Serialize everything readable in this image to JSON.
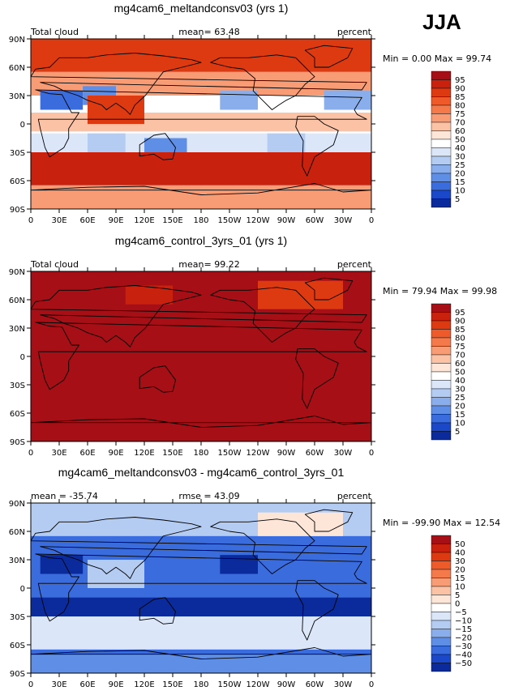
{
  "season": "JJA",
  "panels": [
    {
      "title": "mg4cam6_meltandconsv03 (yrs 1)",
      "left_label": "Total cloud",
      "center_label": "mean=  63.48",
      "right_label": "percent",
      "minmax_label": "Min =   0.00 Max =  99.74",
      "scheme": "abs",
      "field": "model"
    },
    {
      "title": "mg4cam6_control_3yrs_01 (yrs 1)",
      "left_label": "Total cloud",
      "center_label": "mean=  99.22",
      "right_label": "percent",
      "minmax_label": "Min =  79.94 Max =  99.98",
      "scheme": "abs",
      "field": "control"
    },
    {
      "title": "mg4cam6_meltandconsv03 - mg4cam6_control_3yrs_01",
      "left_label": "mean = -35.74",
      "center_label": "rmse =  43.09",
      "right_label": "percent",
      "minmax_label": "Min = -99.90 Max =  12.54",
      "scheme": "diff",
      "field": "diff"
    }
  ],
  "chart_data": {
    "type": "heatmap",
    "subtype": "global lat-lon contour map",
    "variable": "Total cloud",
    "units": "percent",
    "season": "JJA",
    "x_ticks": [
      "0",
      "30E",
      "60E",
      "90E",
      "120E",
      "150E",
      "180",
      "150W",
      "120W",
      "90W",
      "60W",
      "30W",
      "0"
    ],
    "y_ticks": [
      "90N",
      "60N",
      "30N",
      "0",
      "30S",
      "60S",
      "90S"
    ],
    "xlim": [
      0,
      360
    ],
    "ylim": [
      -90,
      90
    ],
    "colorbars": {
      "abs": {
        "levels": [
          "95",
          "90",
          "85",
          "80",
          "75",
          "70",
          "60",
          "50",
          "40",
          "30",
          "25",
          "20",
          "15",
          "10",
          "5"
        ],
        "colors": [
          "#a50f15",
          "#c8210e",
          "#dd3a12",
          "#ee5a2a",
          "#f47a4c",
          "#f89c76",
          "#fbc2a6",
          "#fde6d8",
          "#ffffff",
          "#dbe6f8",
          "#b4cbf2",
          "#8aaeec",
          "#5f8ee6",
          "#3a6cde",
          "#1a48c8",
          "#0b2b9c"
        ]
      },
      "diff": {
        "levels": [
          "50",
          "40",
          "30",
          "20",
          "15",
          "10",
          "5",
          "0",
          "−5",
          "−10",
          "−15",
          "−20",
          "−30",
          "−40",
          "−50"
        ],
        "colors": [
          "#a50f15",
          "#c8210e",
          "#dd3a12",
          "#ee5a2a",
          "#f47a4c",
          "#f89c76",
          "#fbc2a6",
          "#fde6d8",
          "#ffffff",
          "#dbe6f8",
          "#b4cbf2",
          "#8aaeec",
          "#5f8ee6",
          "#3a6cde",
          "#1a48c8",
          "#0b2b9c"
        ]
      }
    },
    "panels": [
      {
        "name": "mg4cam6_meltandconsv03 (yrs 1)",
        "mean": 63.48,
        "min": 0.0,
        "max": 99.74
      },
      {
        "name": "mg4cam6_control_3yrs_01 (yrs 1)",
        "mean": 99.22,
        "min": 79.94,
        "max": 99.98
      },
      {
        "name": "mg4cam6_meltandconsv03 - mg4cam6_control_3yrs_01",
        "mean": -35.74,
        "rmse": 43.09,
        "min": -99.9,
        "max": 12.54
      }
    ],
    "regions": {
      "model": [
        {
          "lon": [
            0,
            360
          ],
          "lat": [
            55,
            90
          ],
          "value": 85
        },
        {
          "lon": [
            0,
            360
          ],
          "lat": [
            30,
            55
          ],
          "value": 72
        },
        {
          "lon": [
            0,
            360
          ],
          "lat": [
            -8,
            12
          ],
          "value": 65
        },
        {
          "lon": [
            0,
            360
          ],
          "lat": [
            -30,
            -10
          ],
          "value": 35
        },
        {
          "lon": [
            0,
            360
          ],
          "lat": [
            -65,
            -30
          ],
          "value": 92
        },
        {
          "lon": [
            0,
            360
          ],
          "lat": [
            -90,
            -65
          ],
          "value": 72
        },
        {
          "lon": [
            10,
            55
          ],
          "lat": [
            15,
            35
          ],
          "value": 12
        },
        {
          "lon": [
            55,
            90
          ],
          "lat": [
            20,
            40
          ],
          "value": 18
        },
        {
          "lon": [
            200,
            240
          ],
          "lat": [
            15,
            35
          ],
          "value": 20
        },
        {
          "lon": [
            310,
            360
          ],
          "lat": [
            15,
            35
          ],
          "value": 22
        },
        {
          "lon": [
            60,
            120
          ],
          "lat": [
            0,
            30
          ],
          "value": 88
        },
        {
          "lon": [
            60,
            100
          ],
          "lat": [
            -30,
            -10
          ],
          "value": 25
        },
        {
          "lon": [
            250,
            290
          ],
          "lat": [
            -30,
            -10
          ],
          "value": 28
        },
        {
          "lon": [
            120,
            165
          ],
          "lat": [
            -30,
            -15
          ],
          "value": 15
        }
      ],
      "control": [
        {
          "lon": [
            0,
            360
          ],
          "lat": [
            -90,
            90
          ],
          "value": 97
        },
        {
          "lon": [
            240,
            330
          ],
          "lat": [
            50,
            80
          ],
          "value": 88
        },
        {
          "lon": [
            100,
            150
          ],
          "lat": [
            55,
            75
          ],
          "value": 91
        }
      ],
      "diff": [
        {
          "lon": [
            0,
            360
          ],
          "lat": [
            -90,
            90
          ],
          "value": -35
        },
        {
          "lon": [
            0,
            360
          ],
          "lat": [
            -65,
            -30
          ],
          "value": -10
        },
        {
          "lon": [
            0,
            360
          ],
          "lat": [
            55,
            90
          ],
          "value": -15
        },
        {
          "lon": [
            0,
            360
          ],
          "lat": [
            -30,
            -10
          ],
          "value": -55
        },
        {
          "lon": [
            10,
            55
          ],
          "lat": [
            15,
            35
          ],
          "value": -55
        },
        {
          "lon": [
            200,
            240
          ],
          "lat": [
            15,
            35
          ],
          "value": -55
        },
        {
          "lon": [
            60,
            120
          ],
          "lat": [
            0,
            30
          ],
          "value": -12
        },
        {
          "lon": [
            0,
            360
          ],
          "lat": [
            -90,
            -70
          ],
          "value": -28
        },
        {
          "lon": [
            240,
            330
          ],
          "lat": [
            55,
            80
          ],
          "value": 2
        }
      ]
    }
  }
}
